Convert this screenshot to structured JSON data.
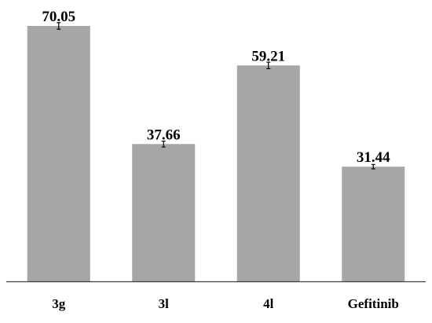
{
  "chart_data": {
    "type": "bar",
    "categories": [
      "3g",
      "3l",
      "4l",
      "Gefitinib"
    ],
    "values": [
      70.05,
      37.66,
      59.21,
      31.44
    ],
    "error": [
      0.9,
      0.8,
      0.9,
      0.6
    ],
    "data_labels": [
      "70.05",
      "37.66",
      "59.21",
      "31.44"
    ],
    "title": "",
    "xlabel": "",
    "ylabel": "",
    "ylim": [
      0,
      75
    ],
    "grid": false,
    "legend": "none",
    "bar_color": "#a6a6a6",
    "axis_color": "#404040",
    "text_color": "#000000"
  }
}
